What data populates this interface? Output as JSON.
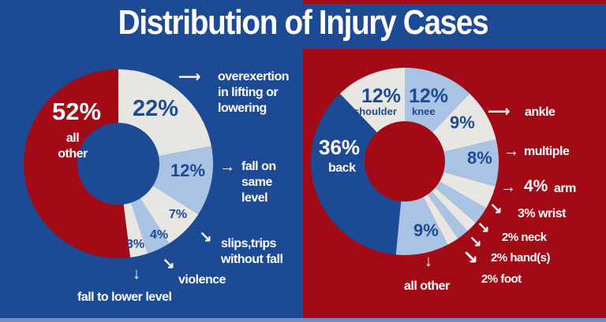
{
  "title": "Distribution of Injury Cases",
  "colors": {
    "blue": "#1c4a94",
    "red": "#a20a16",
    "gray": "#e8e6e3",
    "light_blue": "#a8c3e3"
  },
  "chart_data": [
    {
      "type": "pie",
      "donut": true,
      "segments": [
        {
          "label": "overexertion in lifting or lowering",
          "value": 22,
          "value_label": "22%",
          "color": "#e8e6e3"
        },
        {
          "label": "fall on same level",
          "value": 12,
          "value_label": "12%",
          "color": "#a8c3e3"
        },
        {
          "label": "slips,trips without fall",
          "value": 7,
          "value_label": "7%",
          "color": "#e8e6e3"
        },
        {
          "label": "violence",
          "value": 4,
          "value_label": "4%",
          "color": "#a8c3e3"
        },
        {
          "label": "fall to lower level",
          "value": 3,
          "value_label": "3%",
          "color": "#e8e6e3"
        },
        {
          "label": "all other",
          "value": 52,
          "value_label": "52%",
          "color": "#a20a16"
        }
      ]
    },
    {
      "type": "pie",
      "donut": true,
      "segments": [
        {
          "label": "knee",
          "value": 12,
          "value_label": "12%",
          "color": "#a8c3e3"
        },
        {
          "label": "ankle",
          "value": 9,
          "value_label": "9%",
          "color": "#e8e6e3"
        },
        {
          "label": "multiple",
          "value": 8,
          "value_label": "8%",
          "color": "#a8c3e3"
        },
        {
          "label": "arm",
          "value": 4,
          "value_label": "4%",
          "color": "#e8e6e3"
        },
        {
          "label": "wrist",
          "value": 3,
          "value_label": "3%",
          "color": "#a8c3e3"
        },
        {
          "label": "neck",
          "value": 2,
          "value_label": "2%",
          "color": "#e8e6e3"
        },
        {
          "label": "hand(s)",
          "value": 2,
          "value_label": "2%",
          "color": "#a8c3e3"
        },
        {
          "label": "foot",
          "value": 2,
          "value_label": "2%",
          "color": "#e8e6e3"
        },
        {
          "label": "all other",
          "value": 9,
          "value_label": "9%",
          "color": "#a8c3e3"
        },
        {
          "label": "back",
          "value": 36,
          "value_label": "36%",
          "color": "#1c4a94"
        },
        {
          "label": "shoulder",
          "value": 12,
          "value_label": "12%",
          "color": "#e8e6e3"
        }
      ]
    }
  ],
  "left_labels": {
    "overexertion": [
      "overexertion",
      "in lifting or",
      "lowering"
    ],
    "fall_same": [
      "fall on",
      "same",
      "level"
    ],
    "slips": [
      "slips,trips",
      "without fall"
    ],
    "violence": "violence",
    "fall_lower": "fall to lower level",
    "all_other": [
      "all",
      "other"
    ]
  },
  "right_labels": {
    "shoulder": "shoulder",
    "knee": "knee",
    "back": "back",
    "ankle": "ankle",
    "multiple": "multiple",
    "arm": "arm",
    "wrist": "3% wrist",
    "neck": "2% neck",
    "hand": "2% hand(s)",
    "foot": "2% foot",
    "all_other": "all other"
  }
}
